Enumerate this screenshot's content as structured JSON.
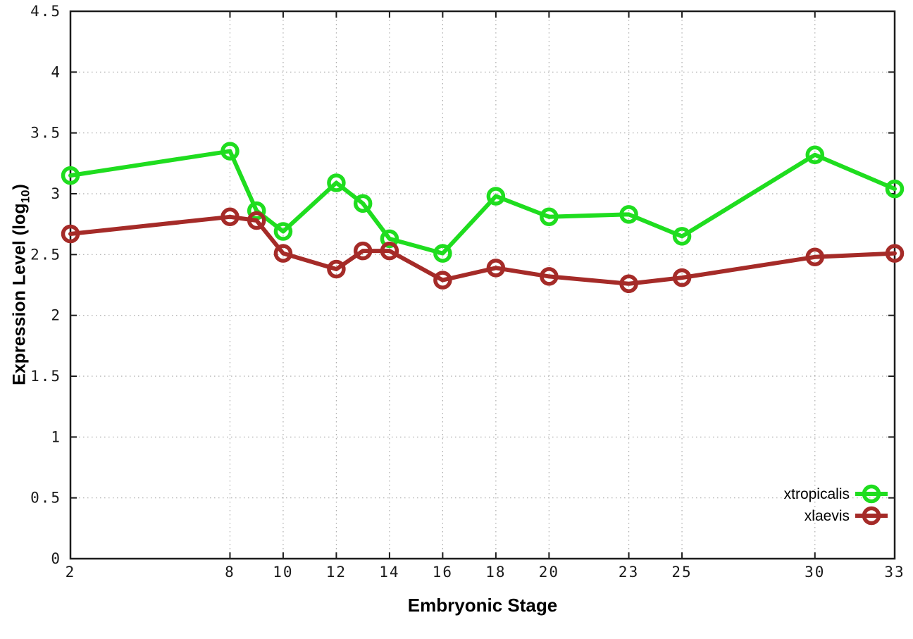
{
  "chart_data": {
    "type": "line",
    "x": [
      2,
      8,
      9,
      10,
      12,
      13,
      14,
      16,
      18,
      20,
      23,
      25,
      30,
      33
    ],
    "series": [
      {
        "name": "xtropicalis",
        "color": "#1fdd1f",
        "values": [
          3.15,
          3.35,
          2.86,
          2.69,
          3.09,
          2.92,
          2.63,
          2.51,
          2.98,
          2.81,
          2.83,
          2.65,
          3.32,
          3.04
        ]
      },
      {
        "name": "xlaevis",
        "color": "#a52b28",
        "values": [
          2.67,
          2.81,
          2.78,
          2.51,
          2.38,
          2.53,
          2.53,
          2.29,
          2.39,
          2.32,
          2.26,
          2.31,
          2.48,
          2.51
        ]
      }
    ],
    "xlabel": "Embryonic Stage",
    "ylabel": "Expression Level (log10)",
    "ylabel_parts": {
      "main": "Expression Level (log",
      "sub": "10",
      "close": ")"
    },
    "xlim": [
      2,
      33
    ],
    "ylim": [
      0,
      4.5
    ],
    "xticks": [
      2,
      8,
      10,
      12,
      14,
      16,
      18,
      20,
      23,
      25,
      30,
      33
    ],
    "xtick_labels": [
      "2",
      "8",
      "10",
      "12",
      "14",
      "16",
      "18",
      "20",
      "23",
      "25",
      "30",
      "33"
    ],
    "yticks": [
      0,
      0.5,
      1,
      1.5,
      2,
      2.5,
      3,
      3.5,
      4,
      4.5
    ],
    "ytick_labels": [
      "0",
      "0.5",
      "1",
      "1.5",
      "2",
      "2.5",
      "3",
      "3.5",
      "4",
      "4.5"
    ],
    "grid": true,
    "marker": "open-circle",
    "legend_position": "bottom-right",
    "frame_color": "#1c1c1c",
    "grid_color": "#ababab",
    "text_color": "#1a1a1a"
  }
}
